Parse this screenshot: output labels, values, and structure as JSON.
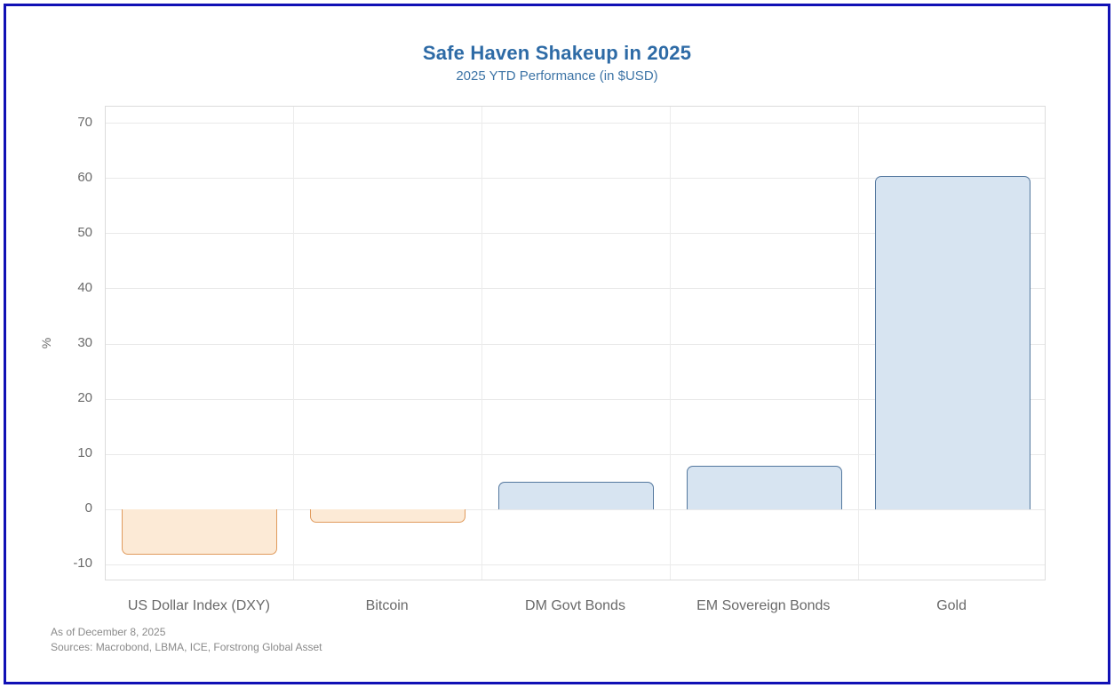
{
  "header": {
    "title": "Safe Haven Shakeup in 2025",
    "subtitle": "2025 YTD Performance (in $USD)"
  },
  "chart_data": {
    "type": "bar",
    "title": "Safe Haven Shakeup in 2025",
    "subtitle": "2025 YTD Performance (in $USD)",
    "categories": [
      "US Dollar Index (DXY)",
      "Bitcoin",
      "DM Govt Bonds",
      "EM Sovereign Bonds",
      "Gold"
    ],
    "values": [
      -8.2,
      -2.3,
      5.0,
      7.9,
      60.4
    ],
    "xlabel": "",
    "ylabel": "%",
    "ylim": [
      -13,
      73
    ],
    "yticks": [
      -10,
      0,
      10,
      20,
      30,
      40,
      50,
      60,
      70
    ],
    "grid": true,
    "legend_position": "none",
    "colors": {
      "positive_fill": "#d7e4f1",
      "positive_border": "#53779e",
      "negative_fill": "#fcead6",
      "negative_border": "#e09b5d",
      "title_blue": "#2e6ba6",
      "frame_border": "#1111b5"
    }
  },
  "footer": {
    "line1": "As of December 8, 2025",
    "line2": "Sources: Macrobond, LBMA, ICE, Forstrong Global Asset"
  }
}
